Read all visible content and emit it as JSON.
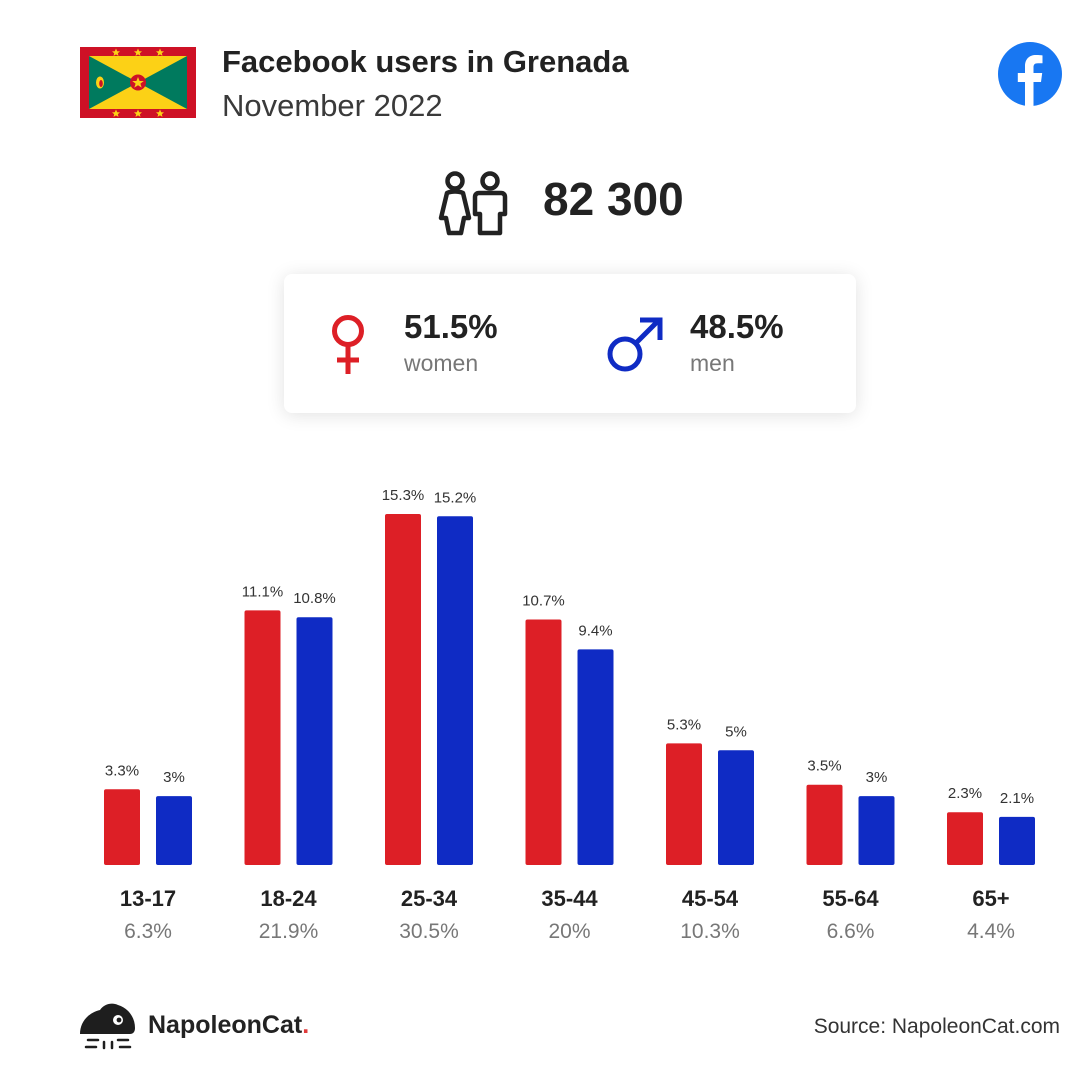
{
  "header": {
    "title": "Facebook users in Grenada",
    "subtitle": "November 2022",
    "flag_icon": "grenada-flag-icon",
    "brand_icon": "facebook-logo-icon"
  },
  "summary": {
    "total_users": "82 300",
    "users_icon": "people-icon",
    "women_pct": "51.5%",
    "women_label": "women",
    "men_pct": "48.5%",
    "men_label": "men"
  },
  "colors": {
    "women": "#dd1f26",
    "men": "#0f2bc4",
    "flag_red": "#ce1126",
    "flag_green": "#007a5e",
    "flag_yellow": "#fcd116",
    "facebook": "#1877f2"
  },
  "chart_data": {
    "type": "bar",
    "categories": [
      "13-17",
      "18-24",
      "25-34",
      "35-44",
      "45-54",
      "55-64",
      "65+"
    ],
    "category_totals": [
      "6.3%",
      "21.9%",
      "30.5%",
      "20%",
      "10.3%",
      "6.6%",
      "4.4%"
    ],
    "series": [
      {
        "values": [
          3.3,
          11.1,
          15.3,
          10.7,
          5.3,
          3.5,
          2.3
        ],
        "labels": [
          "3.3%",
          "11.1%",
          "15.3%",
          "10.7%",
          "5.3%",
          "3.5%",
          "2.3%"
        ],
        "color": "#dd1f26"
      },
      {
        "values": [
          3.0,
          10.8,
          15.2,
          9.4,
          5.0,
          3.0,
          2.1
        ],
        "labels": [
          "3%",
          "10.8%",
          "15.2%",
          "9.4%",
          "5%",
          "3%",
          "2.1%"
        ],
        "color": "#0f2bc4"
      }
    ],
    "ylim": [
      0,
      15.3
    ],
    "grid": false,
    "legend": "none"
  },
  "footer": {
    "brand_name": "NapoleonCat",
    "brand_dot": ".",
    "source": "Source: NapoleonCat.com",
    "brand_logo_icon": "napoleoncat-logo-icon"
  }
}
